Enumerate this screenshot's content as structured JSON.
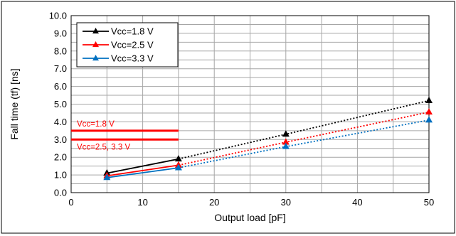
{
  "chart_data": {
    "type": "line",
    "title": "",
    "xlabel": "Output load [pF]",
    "ylabel": "Fall time (tf) [ns]",
    "xlim": [
      0,
      50
    ],
    "ylim": [
      0,
      10
    ],
    "x_ticks": [
      "0",
      "10",
      "20",
      "30",
      "40",
      "50"
    ],
    "y_ticks": [
      "0.0",
      "1.0",
      "2.0",
      "3.0",
      "4.0",
      "5.0",
      "6.0",
      "7.0",
      "8.0",
      "9.0",
      "10.0"
    ],
    "grid": true,
    "legend_position": "top-left",
    "series": [
      {
        "name": "Vcc=1.8 V",
        "color": "#000000",
        "marker": "triangle",
        "measured": [
          {
            "x": 5,
            "y": 1.1
          },
          {
            "x": 15,
            "y": 1.9
          }
        ],
        "extrapolated": [
          {
            "x": 15,
            "y": 1.9
          },
          {
            "x": 30,
            "y": 3.3
          },
          {
            "x": 50,
            "y": 5.2
          }
        ]
      },
      {
        "name": "Vcc=2.5 V",
        "color": "#ff0000",
        "marker": "triangle",
        "measured": [
          {
            "x": 5,
            "y": 0.95
          },
          {
            "x": 15,
            "y": 1.55
          }
        ],
        "extrapolated": [
          {
            "x": 15,
            "y": 1.55
          },
          {
            "x": 30,
            "y": 2.85
          },
          {
            "x": 50,
            "y": 4.55
          }
        ]
      },
      {
        "name": "Vcc=3.3 V",
        "color": "#0070c0",
        "marker": "triangle",
        "measured": [
          {
            "x": 5,
            "y": 0.85
          },
          {
            "x": 15,
            "y": 1.4
          }
        ],
        "extrapolated": [
          {
            "x": 15,
            "y": 1.4
          },
          {
            "x": 30,
            "y": 2.6
          },
          {
            "x": 50,
            "y": 4.1
          }
        ]
      }
    ],
    "reference_lines": [
      {
        "label": "Vcc=1.8 V",
        "y": 3.5,
        "x_start": 0,
        "x_end": 15,
        "color": "#ff0000"
      },
      {
        "label": "Vcc=2.5, 3.3 V",
        "y": 3.0,
        "x_start": 0,
        "x_end": 15,
        "color": "#ff0000"
      }
    ]
  }
}
